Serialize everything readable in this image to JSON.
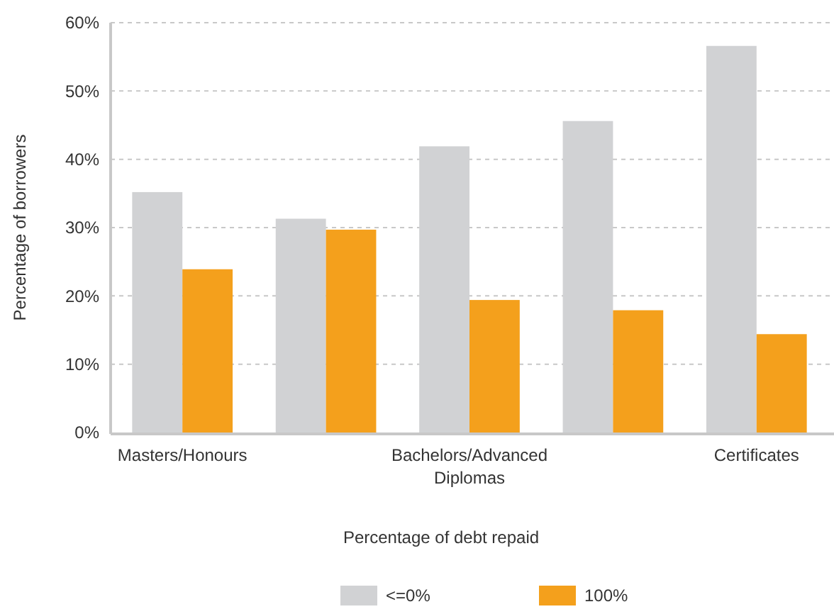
{
  "chart_data": {
    "type": "bar",
    "ylabel": "Percentage of borrowers",
    "legend_title": "Percentage of debt repaid",
    "categories": [
      "Masters/Honours",
      null,
      "Bachelors/Advanced Diplomas",
      null,
      "Certificates"
    ],
    "series": [
      {
        "name": "<=0%",
        "color": "#d1d2d4",
        "values": [
          35.2,
          31.3,
          41.9,
          45.6,
          56.6
        ]
      },
      {
        "name": "100%",
        "color": "#f4a01c",
        "values": [
          23.9,
          29.7,
          19.4,
          17.9,
          14.4
        ]
      }
    ],
    "ylim": [
      0,
      60
    ],
    "yticks": [
      {
        "value": 0,
        "label": "0%"
      },
      {
        "value": 10,
        "label": "10%"
      },
      {
        "value": 20,
        "label": "20%"
      },
      {
        "value": 30,
        "label": "30%"
      },
      {
        "value": 40,
        "label": "40%"
      },
      {
        "value": 50,
        "label": "50%"
      },
      {
        "value": 60,
        "label": "60%"
      }
    ],
    "grid": "y",
    "legend": "bottom"
  }
}
